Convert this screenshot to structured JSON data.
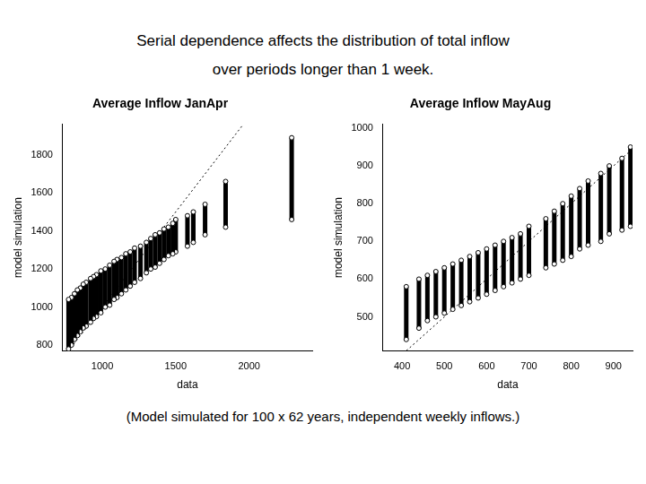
{
  "title_lines": [
    "Serial dependence affects the distribution of total inflow",
    "over periods longer than 1 week."
  ],
  "footnote": "(Model simulated for 100 x 62 years, independent weekly inflows.)",
  "chart_data": [
    {
      "type": "scatter",
      "title": "Average Inflow JanApr",
      "x_label": "data",
      "y_label": "model simulation",
      "color": "#000000",
      "marker": "circle",
      "grid": false,
      "xlim": [
        730,
        2430
      ],
      "ylim": [
        770,
        1960
      ],
      "xticks": [
        1000,
        1500,
        2000
      ],
      "yticks": [
        800,
        1000,
        1200,
        1400,
        1600,
        1800
      ],
      "columns": {
        "x": [
          770,
          790,
          810,
          830,
          850,
          870,
          890,
          920,
          940,
          960,
          990,
          1020,
          1050,
          1080,
          1100,
          1130,
          1160,
          1190,
          1220,
          1260,
          1300,
          1330,
          1360,
          1390,
          1420,
          1450,
          1480,
          1500,
          1580,
          1620,
          1700,
          1840,
          2290
        ],
        "low": [
          780,
          800,
          830,
          850,
          870,
          890,
          900,
          920,
          940,
          950,
          970,
          1000,
          1010,
          1040,
          1050,
          1070,
          1090,
          1110,
          1130,
          1150,
          1180,
          1200,
          1210,
          1230,
          1250,
          1270,
          1280,
          1290,
          1320,
          1340,
          1380,
          1420,
          1460
        ],
        "high": [
          1040,
          1050,
          1070,
          1090,
          1100,
          1120,
          1130,
          1150,
          1160,
          1170,
          1190,
          1200,
          1220,
          1240,
          1250,
          1260,
          1280,
          1290,
          1310,
          1320,
          1340,
          1360,
          1380,
          1390,
          1410,
          1420,
          1440,
          1460,
          1480,
          1500,
          1540,
          1660,
          1890
        ]
      },
      "reference_line": {
        "x": [
          730,
          1960
        ],
        "y": [
          730,
          1960
        ],
        "line_style": "dotted"
      }
    },
    {
      "type": "scatter",
      "title": "Average Inflow MayAug",
      "x_label": "data",
      "y_label": "model simulation",
      "color": "#000000",
      "marker": "circle",
      "grid": false,
      "xlim": [
        355,
        945
      ],
      "ylim": [
        410,
        1010
      ],
      "xticks": [
        400,
        500,
        600,
        700,
        800,
        900
      ],
      "yticks": [
        500,
        600,
        700,
        800,
        900,
        1000
      ],
      "columns": {
        "x": [
          410,
          440,
          460,
          480,
          500,
          520,
          540,
          560,
          580,
          600,
          620,
          640,
          660,
          680,
          700,
          740,
          760,
          780,
          800,
          820,
          840,
          870,
          890,
          920,
          940
        ],
        "low": [
          440,
          470,
          490,
          500,
          510,
          520,
          530,
          540,
          550,
          560,
          570,
          580,
          590,
          600,
          610,
          630,
          640,
          650,
          660,
          680,
          690,
          700,
          720,
          730,
          740
        ],
        "high": [
          580,
          600,
          610,
          620,
          630,
          640,
          650,
          660,
          670,
          680,
          690,
          700,
          710,
          720,
          740,
          760,
          780,
          800,
          820,
          840,
          860,
          880,
          900,
          920,
          950
        ]
      },
      "reference_line": {
        "x": [
          355,
          945
        ],
        "y": [
          355,
          945
        ],
        "line_style": "dotted"
      }
    }
  ]
}
